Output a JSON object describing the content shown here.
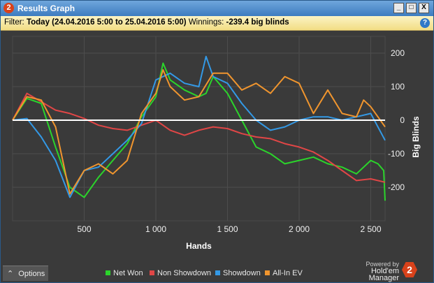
{
  "window": {
    "app_badge": "2",
    "title": "Results Graph",
    "minimize": "_",
    "maximize": "□",
    "close": "X"
  },
  "filter_bar": {
    "filter_label": "Filter:",
    "filter_value": "Today (24.04.2016 5:00 to 25.04.2016 5:00)",
    "winnings_label": "Winnings:",
    "winnings_value": "-239.4 big blinds",
    "help": "?"
  },
  "bottom_bar": {
    "options_icon": "⌃",
    "options_label": "Options",
    "powered_by": "Powered by",
    "brand": "Hold'em Manager",
    "brand_badge": "2"
  },
  "legend": [
    {
      "label": "Net Won",
      "color": "#2bd42b"
    },
    {
      "label": "Non Showdown",
      "color": "#e04646"
    },
    {
      "label": "Showdown",
      "color": "#3399e6"
    },
    {
      "label": "All-In EV",
      "color": "#f0952e"
    }
  ],
  "chart_data": {
    "type": "line",
    "xlabel": "Hands",
    "ylabel": "Big Blinds",
    "xlim": [
      0,
      2600
    ],
    "ylim": [
      -300,
      250
    ],
    "xticks": [
      500,
      1000,
      1500,
      2000,
      2500
    ],
    "xtick_labels": [
      "500",
      "1 000",
      "1 500",
      "2 000",
      "2 500"
    ],
    "yticks": [
      200,
      100,
      0,
      -100,
      -200
    ],
    "grid": true,
    "series": [
      {
        "name": "Net Won",
        "color": "#2bd42b",
        "x": [
          0,
          100,
          200,
          300,
          400,
          500,
          600,
          700,
          800,
          900,
          1000,
          1050,
          1100,
          1200,
          1300,
          1350,
          1400,
          1500,
          1600,
          1700,
          1800,
          1900,
          2000,
          2100,
          2200,
          2300,
          2400,
          2500,
          2550,
          2590,
          2600
        ],
        "values": [
          0,
          65,
          50,
          -80,
          -200,
          -230,
          -170,
          -120,
          -70,
          10,
          70,
          170,
          120,
          90,
          70,
          80,
          130,
          80,
          0,
          -80,
          -100,
          -130,
          -120,
          -110,
          -130,
          -140,
          -160,
          -120,
          -130,
          -150,
          -240
        ]
      },
      {
        "name": "Non Showdown",
        "color": "#e04646",
        "x": [
          0,
          100,
          200,
          300,
          400,
          500,
          600,
          700,
          800,
          900,
          1000,
          1100,
          1200,
          1300,
          1400,
          1500,
          1600,
          1700,
          1800,
          1900,
          2000,
          2100,
          2200,
          2300,
          2400,
          2500,
          2600
        ],
        "values": [
          0,
          80,
          55,
          30,
          20,
          5,
          -15,
          -25,
          -30,
          -15,
          0,
          -30,
          -45,
          -30,
          -20,
          -25,
          -40,
          -50,
          -55,
          -70,
          -80,
          -95,
          -120,
          -150,
          -180,
          -175,
          -185
        ]
      },
      {
        "name": "Showdown",
        "color": "#3399e6",
        "x": [
          0,
          100,
          200,
          300,
          400,
          500,
          600,
          700,
          800,
          900,
          1000,
          1100,
          1200,
          1300,
          1350,
          1400,
          1500,
          1600,
          1700,
          1800,
          1900,
          2000,
          2100,
          2200,
          2300,
          2400,
          2500,
          2600
        ],
        "values": [
          0,
          5,
          -50,
          -120,
          -230,
          -150,
          -140,
          -100,
          -60,
          -10,
          120,
          140,
          110,
          100,
          190,
          130,
          110,
          50,
          0,
          -30,
          -20,
          0,
          10,
          10,
          0,
          10,
          20,
          -60
        ]
      },
      {
        "name": "All-In EV",
        "color": "#f0952e",
        "x": [
          0,
          100,
          200,
          300,
          400,
          500,
          600,
          700,
          800,
          900,
          1000,
          1050,
          1100,
          1200,
          1300,
          1400,
          1500,
          1600,
          1700,
          1800,
          1900,
          2000,
          2100,
          2200,
          2300,
          2400,
          2450,
          2500,
          2600
        ],
        "values": [
          0,
          70,
          60,
          -20,
          -220,
          -150,
          -130,
          -160,
          -120,
          20,
          80,
          150,
          100,
          60,
          70,
          140,
          140,
          90,
          110,
          80,
          130,
          110,
          20,
          90,
          20,
          10,
          60,
          40,
          -20
        ]
      }
    ]
  }
}
